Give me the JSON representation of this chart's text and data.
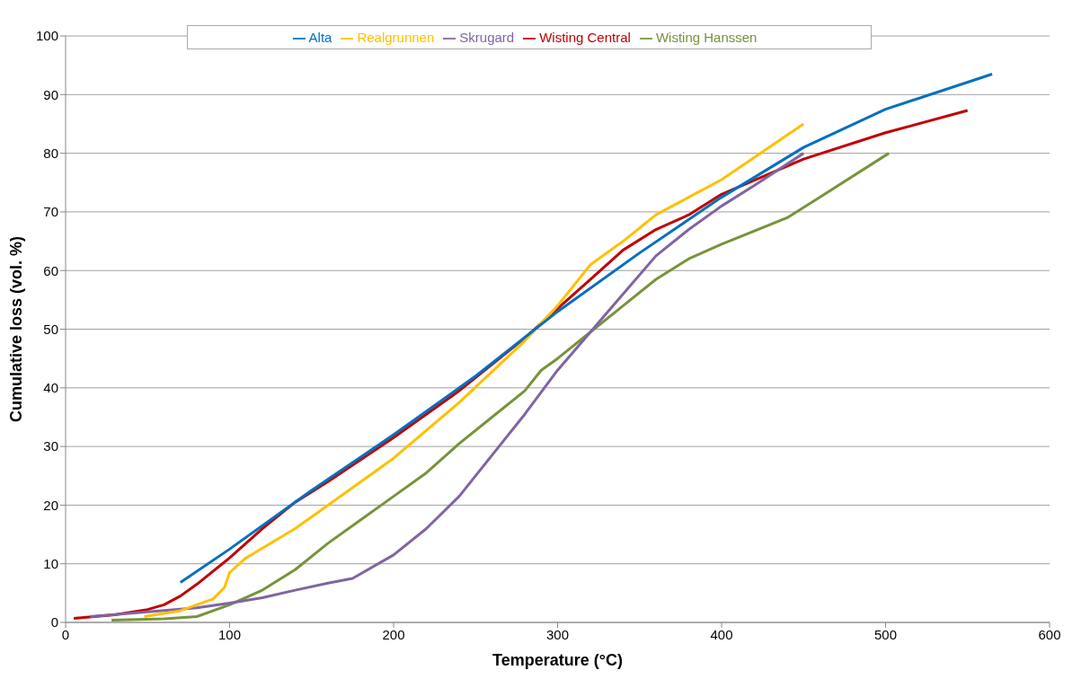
{
  "chart_data": {
    "type": "line",
    "xlabel": "Temperature (°C)",
    "ylabel": "Cumulative loss (vol. %)",
    "xlim": [
      0,
      600
    ],
    "xticks": [
      0,
      100,
      200,
      300,
      400,
      500,
      600
    ],
    "ylim": [
      0,
      100
    ],
    "yticks": [
      0,
      10,
      20,
      30,
      40,
      50,
      60,
      70,
      80,
      90,
      100
    ],
    "grid": "y",
    "legend": "top",
    "marker": "none",
    "line_style": "solid",
    "series": [
      {
        "name": "Wisting Central",
        "color": "#c00000",
        "x": [
          5,
          30,
          50,
          60,
          70,
          80,
          100,
          120,
          140,
          160,
          200,
          240,
          280,
          300,
          320,
          340,
          360,
          380,
          400,
          450,
          500,
          550
        ],
        "values": [
          0.7,
          1.3,
          2.2,
          3,
          4.5,
          6.5,
          11,
          16,
          20.5,
          24,
          31.5,
          39.5,
          48.5,
          53.5,
          58.5,
          63.5,
          67,
          69.5,
          73,
          79,
          83.5,
          87.3
        ]
      },
      {
        "name": "Wisting Hanssen",
        "color": "#77933c",
        "x": [
          28,
          60,
          80,
          100,
          120,
          140,
          160,
          180,
          200,
          220,
          240,
          260,
          280,
          290,
          300,
          320,
          340,
          360,
          380,
          400,
          440,
          460,
          502
        ],
        "values": [
          0.4,
          0.6,
          1,
          3,
          5.5,
          9,
          13.5,
          17.5,
          21.5,
          25.5,
          30.5,
          35,
          39.5,
          43,
          45,
          49.5,
          54,
          58.5,
          62,
          64.5,
          69,
          72.5,
          80
        ]
      },
      {
        "name": "Skrugard",
        "color": "#8064a2",
        "x": [
          15,
          50,
          80,
          100,
          120,
          140,
          160,
          175,
          200,
          220,
          240,
          260,
          280,
          300,
          320,
          340,
          360,
          380,
          400,
          420,
          450
        ],
        "values": [
          1,
          1.8,
          2.5,
          3.3,
          4.2,
          5.5,
          6.7,
          7.5,
          11.5,
          16,
          21.5,
          28.5,
          35.5,
          43,
          49.5,
          56,
          62.5,
          67,
          71,
          74.5,
          80
        ]
      },
      {
        "name": "Realgrunnen",
        "color": "#ffc000",
        "x": [
          48,
          70,
          90,
          97,
          100,
          110,
          140,
          160,
          200,
          240,
          280,
          300,
          320,
          340,
          360,
          370,
          400,
          450
        ],
        "values": [
          1,
          2,
          4,
          6,
          8.5,
          11,
          16,
          20,
          28,
          37.5,
          48,
          54,
          61,
          65,
          69.5,
          71,
          75.5,
          85
        ]
      },
      {
        "name": "Alta",
        "color": "#0070c0",
        "x": [
          70,
          100,
          150,
          200,
          250,
          300,
          350,
          400,
          450,
          500,
          565
        ],
        "values": [
          6.8,
          12.5,
          22.5,
          32,
          42,
          53,
          63,
          72.5,
          81,
          87.5,
          93.5
        ]
      }
    ]
  }
}
